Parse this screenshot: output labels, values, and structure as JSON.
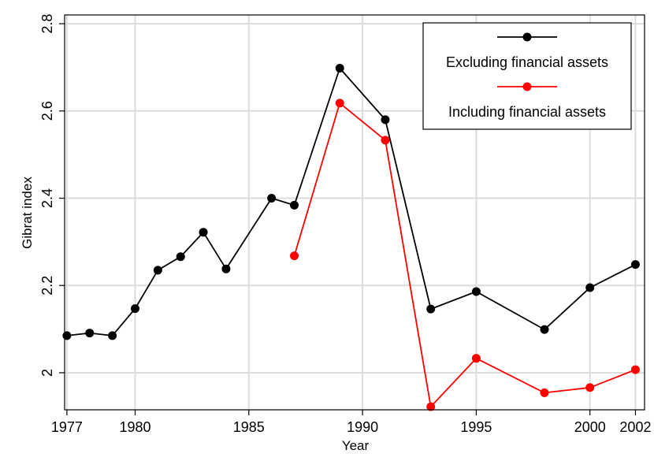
{
  "chart_data": {
    "type": "line",
    "xlabel": "Year",
    "ylabel": "Gibrat index",
    "xlim": [
      1976.9,
      2002.4
    ],
    "ylim": [
      1.915,
      2.82
    ],
    "grid": true,
    "legend_position": "top-right",
    "x_ticks": [
      1977,
      1980,
      1985,
      1990,
      1995,
      2000,
      2002
    ],
    "y_ticks": [
      2.0,
      2.2,
      2.4,
      2.6,
      2.8
    ],
    "y_tick_labels": [
      "2",
      "2.2",
      "2.4",
      "2.6",
      "2.8"
    ],
    "series": [
      {
        "name": "Excluding financial assets",
        "color": "#000000",
        "x": [
          1977,
          1978,
          1979,
          1980,
          1981,
          1982,
          1983,
          1984,
          1986,
          1987,
          1989,
          1991,
          1993,
          1995,
          1998,
          2000,
          2002
        ],
        "y": [
          2.085,
          2.091,
          2.085,
          2.147,
          2.235,
          2.266,
          2.322,
          2.238,
          2.4,
          2.384,
          2.698,
          2.58,
          2.146,
          2.186,
          2.099,
          2.195,
          2.248
        ]
      },
      {
        "name": "Including financial assets",
        "color": "#ff0000",
        "x": [
          1987,
          1989,
          1991,
          1993,
          1995,
          1998,
          2000,
          2002
        ],
        "y": [
          2.268,
          2.618,
          2.533,
          1.922,
          2.033,
          1.954,
          1.966,
          2.007
        ]
      }
    ]
  }
}
